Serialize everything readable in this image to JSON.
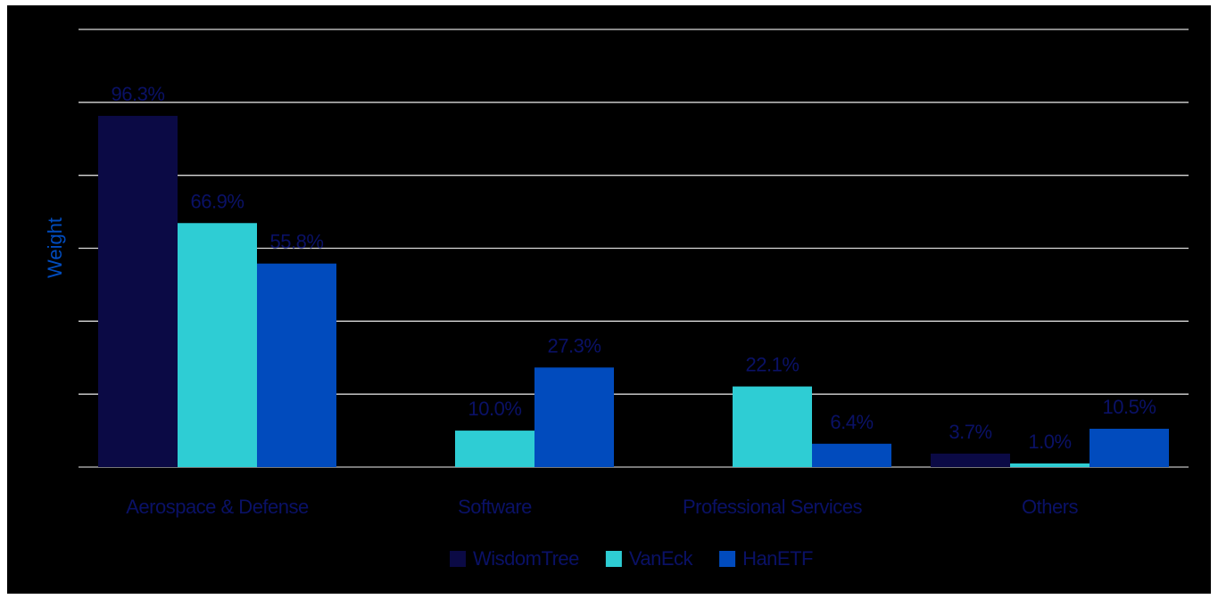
{
  "chart_data": {
    "type": "bar",
    "ylabel": "Weight",
    "xlabel": "",
    "ylim": [
      0,
      120
    ],
    "ytick_step": 20,
    "grid": true,
    "legend_position": "bottom",
    "categories": [
      "Aerospace & Defense",
      "Software",
      "Professional Services",
      "Others"
    ],
    "series": [
      {
        "name": "WisdomTree",
        "color": "#0b0a45",
        "values": [
          96.3,
          null,
          null,
          3.7
        ],
        "labels": [
          "96.3%",
          "",
          "",
          "3.7%"
        ]
      },
      {
        "name": "VanEck",
        "color": "#2ecdd4",
        "values": [
          66.9,
          10.0,
          22.1,
          1.0
        ],
        "labels": [
          "66.9%",
          "10.0%",
          "22.1%",
          "1.0%"
        ]
      },
      {
        "name": "HanETF",
        "color": "#014bbd",
        "values": [
          55.8,
          27.3,
          6.4,
          10.5
        ],
        "labels": [
          "55.8%",
          "27.3%",
          "6.4%",
          "10.5%"
        ]
      }
    ],
    "colors": {
      "background": "#000000",
      "grid": "#d9d9d9",
      "axis": "#bfbfbf",
      "label_text": "#0a1166",
      "ylabel_text": "#014bbd"
    }
  }
}
